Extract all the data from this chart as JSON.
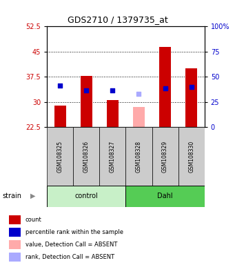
{
  "title": "GDS2710 / 1379735_at",
  "samples": [
    "GSM108325",
    "GSM108326",
    "GSM108327",
    "GSM108328",
    "GSM108329",
    "GSM108330"
  ],
  "groups": [
    "control",
    "control",
    "control",
    "Dahl",
    "Dahl",
    "Dahl"
  ],
  "group_labels": [
    "control",
    "Dahl"
  ],
  "group_colors_light": "#c8f0c8",
  "group_colors_dark": "#55cc55",
  "ylim_left": [
    22.5,
    52.5
  ],
  "ylim_right": [
    0,
    100
  ],
  "yticks_left": [
    22.5,
    30,
    37.5,
    45,
    52.5
  ],
  "yticks_right": [
    0,
    25,
    50,
    75,
    100
  ],
  "dotted_lines": [
    30,
    37.5,
    45
  ],
  "bar_bottom": 22.5,
  "bars_red": [
    29.0,
    37.7,
    30.5,
    0,
    46.5,
    40.0
  ],
  "bars_red_absent": [
    0,
    0,
    0,
    28.5,
    0,
    0
  ],
  "blue_squares": [
    35.0,
    33.5,
    33.5,
    0,
    34.0,
    34.5
  ],
  "blue_squares_absent": [
    0,
    0,
    0,
    32.5,
    0,
    0
  ],
  "bar_color_red": "#cc0000",
  "bar_color_pink": "#ffaaaa",
  "square_color_blue": "#0000cc",
  "square_color_lightblue": "#aaaaff",
  "bar_width": 0.45,
  "sq_size": 18,
  "legend_items": [
    {
      "color": "#cc0000",
      "label": "count"
    },
    {
      "color": "#0000cc",
      "label": "percentile rank within the sample"
    },
    {
      "color": "#ffaaaa",
      "label": "value, Detection Call = ABSENT"
    },
    {
      "color": "#aaaaff",
      "label": "rank, Detection Call = ABSENT"
    }
  ],
  "strain_label": "strain",
  "ylabel_left_color": "#cc0000",
  "ylabel_right_color": "#0000cc",
  "label_area_color": "#cccccc",
  "title_fontsize": 9,
  "tick_fontsize": 7,
  "legend_fontsize": 6,
  "sample_fontsize": 5.5,
  "group_fontsize": 7
}
